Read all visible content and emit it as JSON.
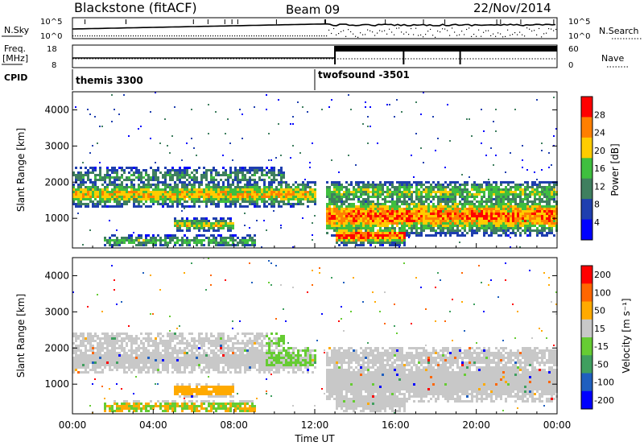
{
  "header": {
    "station": "Blackstone (fitACF)",
    "beam": "Beam 09",
    "date": "22/Nov/2014"
  },
  "side_labels": {
    "nsky": "N.Sky",
    "freq_line1": "Freq.",
    "freq_line2": "[MHz]",
    "cpid": "CPID",
    "nsearch": "N.Search",
    "nave": "Nave"
  },
  "top_panel_ticks": {
    "left_top": "10^5",
    "left_bottom": "10^0",
    "right_top": "10^5",
    "right_bottom": "10^0",
    "freq_top": "18",
    "freq_bottom": "8",
    "nave_top": "60",
    "nave_bottom": "0"
  },
  "cpid_labels": [
    {
      "text": "themis 3300",
      "hour": 0.0
    },
    {
      "text": "twofsound -3501",
      "hour": 12.0
    }
  ],
  "chart_data": [
    {
      "type": "heatmap",
      "ylabel": "Slant Range [km]",
      "xlim": [
        0,
        24
      ],
      "ylim": [
        180,
        4500
      ],
      "yticks": [
        1000,
        2000,
        3000,
        4000
      ],
      "colorbar": {
        "label": "Power [dB]",
        "ticks": [
          "4",
          "8",
          "12",
          "16",
          "20",
          "24",
          "28"
        ],
        "colors": [
          "#0000ff",
          "#1f3faf",
          "#3f7f5f",
          "#3fbf3f",
          "#ffcc00",
          "#ff7f00",
          "#ff0000"
        ]
      },
      "bands": [
        {
          "from": 0.0,
          "to": 12.0,
          "range_center": 1700,
          "width": 300,
          "level": 0.7
        },
        {
          "from": 0.0,
          "to": 10.5,
          "range_center": 2200,
          "width": 250,
          "level": 0.4
        },
        {
          "from": 1.5,
          "to": 9.0,
          "range_center": 400,
          "width": 150,
          "level": 0.5
        },
        {
          "from": 5.0,
          "to": 8.0,
          "range_center": 850,
          "width": 150,
          "level": 0.65
        },
        {
          "from": 12.5,
          "to": 24.0,
          "range_center": 1100,
          "width": 450,
          "level": 0.85
        },
        {
          "from": 12.5,
          "to": 24.0,
          "range_center": 1750,
          "width": 300,
          "level": 0.55
        },
        {
          "from": 13.0,
          "to": 16.5,
          "range_center": 550,
          "width": 200,
          "level": 0.95
        }
      ]
    },
    {
      "type": "heatmap",
      "ylabel": "Slant Range [km]",
      "xlabel": "Time UT",
      "xlim": [
        0,
        24
      ],
      "ylim": [
        180,
        4500
      ],
      "xticks": [
        "00:00",
        "04:00",
        "08:00",
        "12:00",
        "16:00",
        "20:00",
        "00:00"
      ],
      "yticks": [
        1000,
        2000,
        3000,
        4000
      ],
      "colorbar": {
        "label": "Velocity [m s⁻¹]",
        "ticks": [
          "200",
          "100",
          "50",
          "15",
          "-15",
          "-50",
          "-100",
          "-200"
        ],
        "colors": [
          "#0000ff",
          "#1f5fbf",
          "#3f9f5f",
          "#66cc33",
          "#c8c8c8",
          "#ffaa00",
          "#ff6600",
          "#ff0000"
        ]
      }
    }
  ]
}
